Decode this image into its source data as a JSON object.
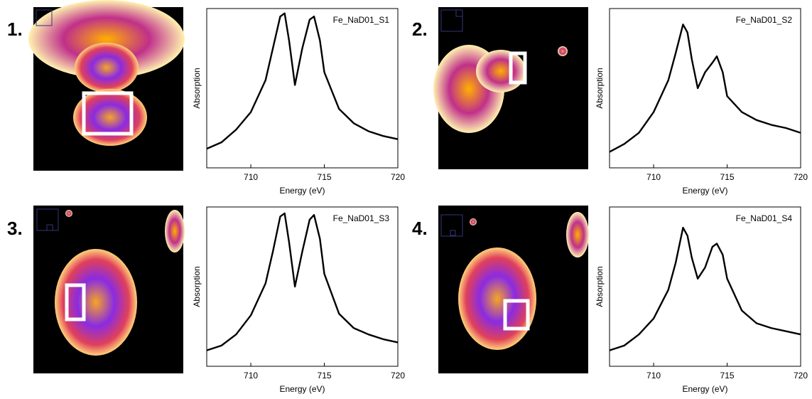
{
  "chart_data": [
    {
      "type": "line",
      "panel_label": "1.",
      "title": "Fe_NaD01_S1",
      "x_label": "Energy (eV)",
      "y_label": "Absorption",
      "color": "#000000",
      "x": [
        707,
        708,
        709,
        710,
        711,
        711.5,
        712,
        712.3,
        712.6,
        713,
        713.5,
        714,
        714.3,
        714.7,
        715,
        716,
        717,
        718,
        719,
        720
      ],
      "values": [
        0.12,
        0.16,
        0.24,
        0.35,
        0.55,
        0.75,
        0.95,
        0.97,
        0.8,
        0.52,
        0.75,
        0.93,
        0.95,
        0.8,
        0.6,
        0.37,
        0.28,
        0.23,
        0.2,
        0.18
      ],
      "xlim": [
        707,
        720
      ],
      "ylim": [
        0,
        1
      ],
      "xticks": [
        710,
        715,
        720
      ]
    },
    {
      "type": "line",
      "panel_label": "2.",
      "title": "Fe_NaD01_S2",
      "x_label": "Energy (eV)",
      "y_label": "Absorption",
      "color": "#000000",
      "x": [
        707,
        708,
        709,
        710,
        711,
        711.5,
        712,
        712.3,
        712.6,
        713,
        713.5,
        714,
        714.3,
        714.7,
        715,
        716,
        717,
        718,
        719,
        720
      ],
      "values": [
        0.1,
        0.15,
        0.22,
        0.35,
        0.55,
        0.72,
        0.9,
        0.85,
        0.68,
        0.5,
        0.6,
        0.66,
        0.7,
        0.6,
        0.45,
        0.35,
        0.3,
        0.27,
        0.25,
        0.22
      ],
      "xlim": [
        707,
        720
      ],
      "ylim": [
        0,
        1
      ],
      "xticks": [
        710,
        715,
        720
      ]
    },
    {
      "type": "line",
      "panel_label": "3.",
      "title": "Fe_NaD01_S3",
      "x_label": "Energy (eV)",
      "y_label": "Absorption",
      "color": "#000000",
      "x": [
        707,
        708,
        709,
        710,
        711,
        711.5,
        712,
        712.3,
        712.6,
        713,
        713.5,
        714,
        714.3,
        714.7,
        715,
        716,
        717,
        718,
        719,
        720
      ],
      "values": [
        0.1,
        0.13,
        0.2,
        0.32,
        0.52,
        0.72,
        0.94,
        0.96,
        0.78,
        0.5,
        0.72,
        0.92,
        0.95,
        0.8,
        0.58,
        0.33,
        0.24,
        0.2,
        0.17,
        0.15
      ],
      "xlim": [
        707,
        720
      ],
      "ylim": [
        0,
        1
      ],
      "xticks": [
        710,
        715,
        720
      ]
    },
    {
      "type": "line",
      "panel_label": "4.",
      "title": "Fe_NaD01_S4",
      "x_label": "Energy (eV)",
      "y_label": "Absorption",
      "color": "#000000",
      "x": [
        707,
        708,
        709,
        710,
        711,
        711.5,
        712,
        712.3,
        712.6,
        713,
        713.5,
        714,
        714.3,
        714.7,
        715,
        716,
        717,
        718,
        719,
        720
      ],
      "values": [
        0.1,
        0.13,
        0.2,
        0.3,
        0.48,
        0.65,
        0.87,
        0.82,
        0.68,
        0.55,
        0.62,
        0.75,
        0.77,
        0.7,
        0.55,
        0.35,
        0.27,
        0.24,
        0.22,
        0.2
      ],
      "xlim": [
        707,
        720
      ],
      "ylim": [
        0,
        1
      ],
      "xticks": [
        710,
        715,
        720
      ]
    }
  ]
}
